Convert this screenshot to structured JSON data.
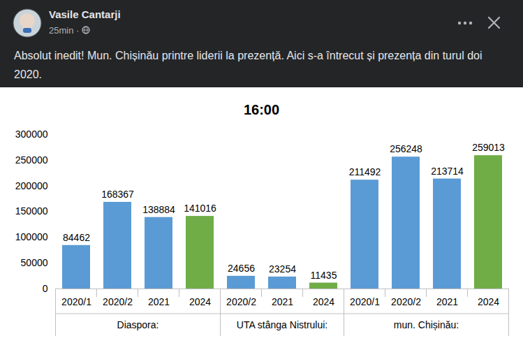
{
  "header": {
    "author": "Vasile Cantarji",
    "meta": "25min ·",
    "text": "Absolut inedit! Mun. Chișinău printre liderii la prezență. Aici s-a întrecut și prezența din turul doi 2020."
  },
  "chart_data": {
    "type": "bar",
    "title": "16:00",
    "categories": [
      "2020/1",
      "2020/2",
      "2021",
      "2024",
      "2020/2",
      "2021",
      "2024",
      "2020/1",
      "2020/2",
      "2021",
      "2024"
    ],
    "groups": [
      "Diaspora:",
      "Diaspora:",
      "Diaspora:",
      "Diaspora:",
      "UTA stânga Nistrului:",
      "UTA stânga Nistrului:",
      "UTA stânga Nistrului:",
      "mun. Chișinău:",
      "mun. Chișinău:",
      "mun. Chișinău:",
      "mun. Chișinău:"
    ],
    "values": [
      84462,
      168367,
      138884,
      141016,
      24656,
      23254,
      11435,
      211492,
      256248,
      213714,
      259013
    ],
    "colors": [
      "#5b9bd5",
      "#5b9bd5",
      "#5b9bd5",
      "#70ad47",
      "#5b9bd5",
      "#5b9bd5",
      "#70ad47",
      "#5b9bd5",
      "#5b9bd5",
      "#5b9bd5",
      "#70ad47"
    ],
    "ylim": [
      0,
      300000
    ],
    "yticks": [
      0,
      50000,
      100000,
      150000,
      200000,
      250000,
      300000
    ],
    "grid": false,
    "data_labels": true
  }
}
